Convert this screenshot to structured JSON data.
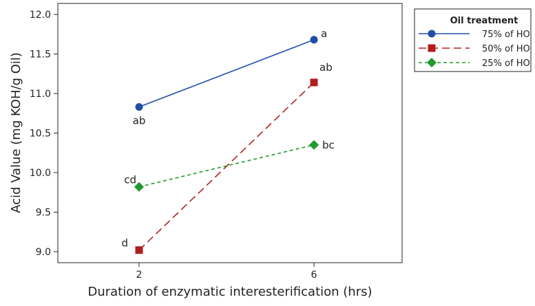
{
  "chart_data": {
    "type": "line",
    "xlabel": "Duration of enzymatic interesterification (hrs)",
    "ylabel": "Acid Value (mg KOH/g Oil)",
    "x_categories": [
      "2",
      "6"
    ],
    "ylim": [
      8.9,
      12.05
    ],
    "yticks": [
      9.0,
      9.5,
      10.0,
      10.5,
      11.0,
      11.5,
      12.0
    ],
    "ytick_labels": [
      "9.0",
      "9.5",
      "10.0",
      "10.5",
      "11.0",
      "11.5",
      "12.0"
    ],
    "grid": false,
    "legend": {
      "title": "Oil treatment",
      "placement": "right-outside"
    },
    "series": [
      {
        "name": "75% of HO",
        "values": [
          10.83,
          11.68
        ],
        "letters": [
          "ab",
          "a"
        ],
        "color": "#1f4fa8",
        "marker": "circle",
        "dash": "solid"
      },
      {
        "name": "50% of HO",
        "values": [
          9.02,
          11.14
        ],
        "letters": [
          "d",
          "ab"
        ],
        "color": "#b01e1e",
        "marker": "square",
        "dash": "long-dash"
      },
      {
        "name": "25% of HO",
        "values": [
          9.82,
          10.35
        ],
        "letters": [
          "cd",
          "bc"
        ],
        "color": "#1f9a2e",
        "marker": "diamond",
        "dash": "short-dash"
      }
    ]
  }
}
